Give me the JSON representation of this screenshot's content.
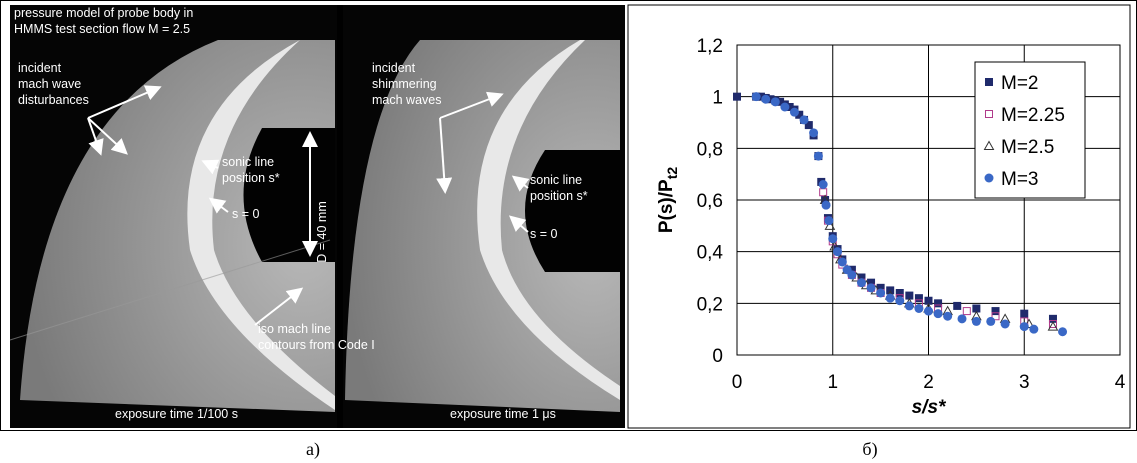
{
  "panel_a": {
    "left": {
      "title": [
        "pressure model of probe body in",
        "HMMS test section flow M = 2.5"
      ],
      "incident": [
        "incident",
        "mach wave",
        "disturbances"
      ],
      "sonic": [
        "sonic line",
        "position s*"
      ],
      "s0": "s = 0",
      "diameter": "D = 40 mm",
      "iso": [
        "iso mach line",
        "contours from Code I"
      ],
      "exposure": "exposure time 1/100 s"
    },
    "right": {
      "incident": [
        "incident",
        "shimmering",
        "mach waves"
      ],
      "sonic": [
        "sonic line",
        "position s*"
      ],
      "s0": "s = 0",
      "exposure": "exposure time 1 μs"
    }
  },
  "captions": [
    "a)",
    "б)"
  ],
  "chart_data": {
    "type": "scatter",
    "x_label": "s/s*",
    "y_label": "P(s)/P",
    "y_label_sub": "t2",
    "xlim": [
      0,
      4
    ],
    "xticks": [
      0,
      1,
      2,
      3,
      4
    ],
    "ylim": [
      0,
      1.2
    ],
    "yticks": [
      0,
      {
        "value": 0.2,
        "label": "0,2"
      },
      {
        "value": 0.4,
        "label": "0,4"
      },
      {
        "value": 0.6,
        "label": "0,6"
      },
      {
        "value": 0.8,
        "label": "0,8"
      },
      1,
      {
        "value": 1.2,
        "label": "1,2"
      }
    ],
    "grid": true,
    "legend": "upper-right",
    "series": [
      {
        "name": "M=2",
        "color": "#1f2a6b",
        "marker": "square",
        "x": [
          0,
          0.2,
          0.25,
          0.3,
          0.35,
          0.4,
          0.45,
          0.5,
          0.55,
          0.6,
          0.65,
          0.7,
          0.75,
          0.8,
          0.85,
          0.88,
          0.92,
          0.95,
          1.0,
          1.05,
          1.1,
          1.2,
          1.3,
          1.4,
          1.5,
          1.6,
          1.7,
          1.8,
          1.9,
          2.0,
          2.1,
          2.3,
          2.5,
          2.7,
          3.0,
          3.3
        ],
        "values": [
          1,
          1,
          1,
          0.995,
          0.99,
          0.985,
          0.98,
          0.97,
          0.96,
          0.95,
          0.93,
          0.91,
          0.89,
          0.85,
          0.77,
          0.67,
          0.6,
          0.53,
          0.46,
          0.41,
          0.37,
          0.33,
          0.3,
          0.28,
          0.26,
          0.25,
          0.24,
          0.23,
          0.22,
          0.21,
          0.2,
          0.19,
          0.18,
          0.17,
          0.16,
          0.14
        ]
      },
      {
        "name": "M=2.25",
        "color": "#b03a8a",
        "marker": "open-square",
        "x": [
          0.9,
          0.95,
          1.0,
          1.05,
          1.1,
          1.2,
          1.3,
          1.4,
          1.5,
          1.7,
          1.9,
          2.1,
          2.4,
          2.7,
          3.0,
          3.3
        ],
        "values": [
          0.63,
          0.52,
          0.44,
          0.39,
          0.35,
          0.31,
          0.28,
          0.26,
          0.24,
          0.22,
          0.2,
          0.18,
          0.17,
          0.15,
          0.13,
          0.12
        ]
      },
      {
        "name": "M=2.5",
        "color": "#333333",
        "marker": "open-triangle",
        "x": [
          0.92,
          0.97,
          1.02,
          1.08,
          1.15,
          1.25,
          1.35,
          1.45,
          1.6,
          1.8,
          2.0,
          2.2,
          2.5,
          2.8,
          3.05,
          3.3
        ],
        "values": [
          0.6,
          0.5,
          0.42,
          0.37,
          0.33,
          0.3,
          0.27,
          0.25,
          0.23,
          0.2,
          0.18,
          0.17,
          0.15,
          0.14,
          0.12,
          0.11
        ]
      },
      {
        "name": "M=3",
        "color": "#3a68c6",
        "marker": "circle",
        "x": [
          0.2,
          0.3,
          0.4,
          0.5,
          0.6,
          0.7,
          0.8,
          0.85,
          0.9,
          0.93,
          0.96,
          1.0,
          1.05,
          1.1,
          1.15,
          1.2,
          1.3,
          1.4,
          1.5,
          1.6,
          1.7,
          1.8,
          1.9,
          2.0,
          2.1,
          2.2,
          2.35,
          2.5,
          2.65,
          2.8,
          3.0,
          3.1,
          3.4
        ],
        "values": [
          1,
          0.99,
          0.98,
          0.96,
          0.94,
          0.91,
          0.86,
          0.77,
          0.66,
          0.58,
          0.52,
          0.45,
          0.4,
          0.36,
          0.33,
          0.31,
          0.28,
          0.26,
          0.24,
          0.22,
          0.21,
          0.19,
          0.18,
          0.17,
          0.16,
          0.15,
          0.14,
          0.13,
          0.13,
          0.12,
          0.11,
          0.1,
          0.09
        ]
      }
    ]
  }
}
